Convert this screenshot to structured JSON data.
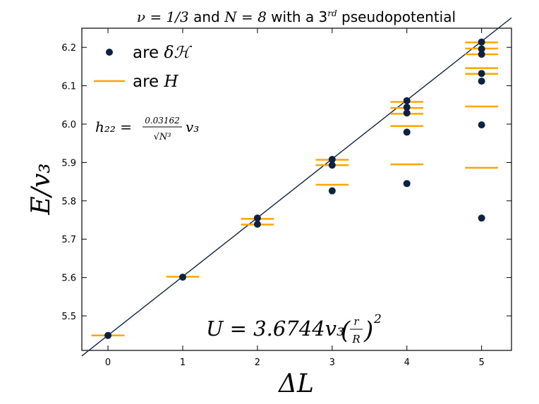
{
  "chart_data": {
    "type": "scatter",
    "title": {
      "prefix": "ν = 1/3",
      "middle": " and ",
      "n_part": "N = 8",
      "suffix_a": " with a 3",
      "superscript": "rd",
      "suffix_b": " pseudopotential"
    },
    "xlabel": "ΔL",
    "ylabel": "E/v₃",
    "xlim": [
      -0.35,
      5.4
    ],
    "ylim": [
      5.41,
      6.25
    ],
    "xticks": [
      0,
      1,
      2,
      3,
      4,
      5
    ],
    "yticks": [
      5.5,
      5.6,
      5.7,
      5.8,
      5.9,
      6.0,
      6.1,
      6.2
    ],
    "grid": false,
    "legend": {
      "placement": "top-left",
      "entries": [
        {
          "marker": "dot",
          "text": "are ",
          "math": "δℋ"
        },
        {
          "marker": "line",
          "text": "are ",
          "math": "H"
        }
      ]
    },
    "annotations": {
      "h22": {
        "lhs": "h₂₂ =",
        "numerator": "0.03162",
        "denominator": "√N³",
        "rhs": "v₃"
      },
      "U": {
        "main": "U = 3.6744v₃",
        "numerator": "r",
        "denominator": "R",
        "exponent": "2"
      }
    },
    "series": [
      {
        "name": "δℋ",
        "marker": "dot",
        "points": [
          {
            "x": 0,
            "y": 5.449
          },
          {
            "x": 1,
            "y": 5.601
          },
          {
            "x": 2,
            "y": 5.755
          },
          {
            "x": 2,
            "y": 5.739
          },
          {
            "x": 3,
            "y": 5.908
          },
          {
            "x": 3,
            "y": 5.893
          },
          {
            "x": 3,
            "y": 5.826
          },
          {
            "x": 4,
            "y": 6.061
          },
          {
            "x": 4,
            "y": 6.044
          },
          {
            "x": 4,
            "y": 6.029
          },
          {
            "x": 4,
            "y": 5.979
          },
          {
            "x": 4,
            "y": 5.845
          },
          {
            "x": 5,
            "y": 6.214
          },
          {
            "x": 5,
            "y": 6.196
          },
          {
            "x": 5,
            "y": 6.182
          },
          {
            "x": 5,
            "y": 6.132
          },
          {
            "x": 5,
            "y": 6.112
          },
          {
            "x": 5,
            "y": 5.998
          },
          {
            "x": 5,
            "y": 5.755
          }
        ]
      },
      {
        "name": "H",
        "marker": "hline",
        "half_width": 0.22,
        "points": [
          {
            "x": 0,
            "y": 5.449
          },
          {
            "x": 1,
            "y": 5.602
          },
          {
            "x": 2,
            "y": 5.753
          },
          {
            "x": 2,
            "y": 5.738
          },
          {
            "x": 3,
            "y": 5.907
          },
          {
            "x": 3,
            "y": 5.893
          },
          {
            "x": 3,
            "y": 5.842
          },
          {
            "x": 4,
            "y": 6.058
          },
          {
            "x": 4,
            "y": 6.042
          },
          {
            "x": 4,
            "y": 6.027
          },
          {
            "x": 4,
            "y": 5.995
          },
          {
            "x": 4,
            "y": 5.895
          },
          {
            "x": 5,
            "y": 6.213
          },
          {
            "x": 5,
            "y": 6.197
          },
          {
            "x": 5,
            "y": 6.182
          },
          {
            "x": 5,
            "y": 6.146
          },
          {
            "x": 5,
            "y": 6.131
          },
          {
            "x": 5,
            "y": 6.046
          },
          {
            "x": 5,
            "y": 5.886
          }
        ]
      }
    ],
    "fit_line": {
      "x": [
        -0.35,
        5.4
      ],
      "y": [
        5.3957,
        6.2771
      ]
    },
    "colors": {
      "dots": "#0d2240",
      "lines": "#ffa500",
      "fit": "#0d2240",
      "axis": "#000000"
    }
  }
}
